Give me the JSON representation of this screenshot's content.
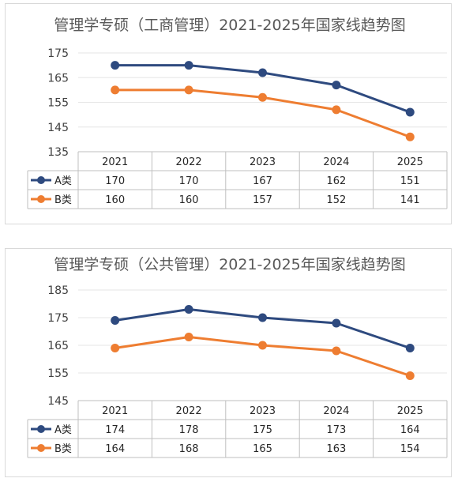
{
  "chart_data": [
    {
      "type": "line",
      "title": "管理学专硕（工商管理）2021-2025年国家线趋势图",
      "categories": [
        "2021",
        "2022",
        "2023",
        "2024",
        "2025"
      ],
      "ylim": [
        135,
        175
      ],
      "yticks": [
        135,
        145,
        155,
        165,
        175
      ],
      "grid": true,
      "legend": "data-table",
      "series": [
        {
          "name": "A类",
          "color": "#2e4a7f",
          "values": [
            170,
            170,
            167,
            162,
            151
          ]
        },
        {
          "name": "B类",
          "color": "#ee7d31",
          "values": [
            160,
            160,
            157,
            152,
            141
          ]
        }
      ]
    },
    {
      "type": "line",
      "title": "管理学专硕（公共管理）2021-2025年国家线趋势图",
      "categories": [
        "2021",
        "2022",
        "2023",
        "2024",
        "2025"
      ],
      "ylim": [
        145,
        185
      ],
      "yticks": [
        145,
        155,
        165,
        175,
        185
      ],
      "grid": true,
      "legend": "data-table",
      "series": [
        {
          "name": "A类",
          "color": "#2e4a7f",
          "values": [
            174,
            178,
            175,
            173,
            164
          ]
        },
        {
          "name": "B类",
          "color": "#ee7d31",
          "values": [
            164,
            168,
            165,
            163,
            154
          ]
        }
      ]
    }
  ]
}
